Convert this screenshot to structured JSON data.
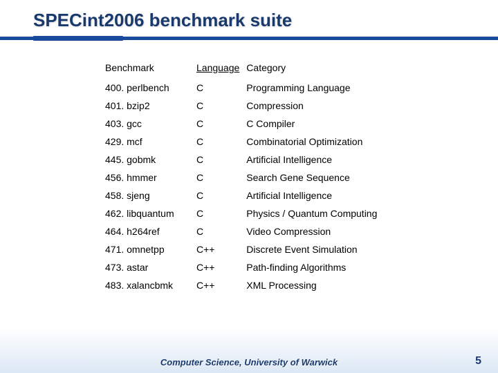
{
  "slide": {
    "title": "SPECint2006 benchmark suite",
    "footer": "Computer Science, University of Warwick",
    "page_number": "5"
  },
  "table": {
    "headers": {
      "benchmark": "Benchmark",
      "language": "Language",
      "category": "Category"
    },
    "rows": [
      {
        "benchmark": "400. perlbench",
        "language": "C",
        "category": "Programming Language"
      },
      {
        "benchmark": "401. bzip2",
        "language": "C",
        "category": "Compression"
      },
      {
        "benchmark": "403. gcc",
        "language": "C",
        "category": "C Compiler"
      },
      {
        "benchmark": "429. mcf",
        "language": "C",
        "category": "Combinatorial Optimization"
      },
      {
        "benchmark": "445. gobmk",
        "language": "C",
        "category": "Artificial Intelligence"
      },
      {
        "benchmark": "456. hmmer",
        "language": "C",
        "category": "Search Gene Sequence"
      },
      {
        "benchmark": "458. sjeng",
        "language": "C",
        "category": "Artificial Intelligence"
      },
      {
        "benchmark": "462. libquantum",
        "language": "C",
        "category": "Physics / Quantum Computing"
      },
      {
        "benchmark": "464. h264ref",
        "language": "C",
        "category": "Video Compression"
      },
      {
        "benchmark": "471. omnetpp",
        "language": "C++",
        "category": "Discrete Event Simulation"
      },
      {
        "benchmark": "473. astar",
        "language": "C++",
        "category": "Path-finding Algorithms"
      },
      {
        "benchmark": "483. xalancbmk",
        "language": "C++",
        "category": "XML Processing"
      }
    ]
  },
  "style": {
    "title_color": "#1a3a6e",
    "underline_color": "#1a4a9c",
    "text_color": "#000000",
    "bg_gradient_top": "#ffffff",
    "bg_gradient_bottom": "#dce8f5",
    "title_fontsize": 26,
    "table_fontsize": 14,
    "footer_fontsize": 13
  }
}
